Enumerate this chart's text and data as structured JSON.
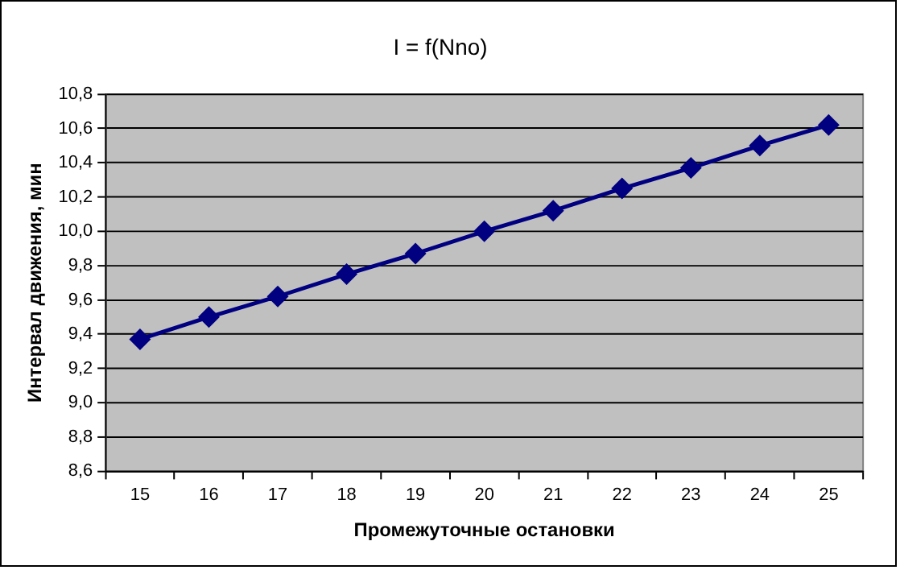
{
  "chart_data": {
    "type": "line",
    "title": "I = f(Nno)",
    "xlabel": "Промежуточные остановки",
    "ylabel": "Интервал движения, мин",
    "categories": [
      "15",
      "16",
      "17",
      "18",
      "19",
      "20",
      "21",
      "22",
      "23",
      "24",
      "25"
    ],
    "series": [
      {
        "color": "#000080",
        "values": [
          9.37,
          9.5,
          9.62,
          9.75,
          9.87,
          10.0,
          10.12,
          10.25,
          10.37,
          10.5,
          10.62
        ]
      }
    ],
    "ylim": [
      8.6,
      10.8
    ],
    "yticks": [
      {
        "value": 8.6,
        "label": "8,6"
      },
      {
        "value": 8.8,
        "label": "8,8"
      },
      {
        "value": 9.0,
        "label": "9,0"
      },
      {
        "value": 9.2,
        "label": "9,2"
      },
      {
        "value": 9.4,
        "label": "9,4"
      },
      {
        "value": 9.6,
        "label": "9,6"
      },
      {
        "value": 9.8,
        "label": "9,8"
      },
      {
        "value": 10.0,
        "label": "10,0"
      },
      {
        "value": 10.2,
        "label": "10,2"
      },
      {
        "value": 10.4,
        "label": "10,4"
      },
      {
        "value": 10.6,
        "label": "10,6"
      },
      {
        "value": 10.8,
        "label": "10,8"
      }
    ],
    "grid": "y",
    "legend": false,
    "marker": "diamond",
    "line_style": "solid"
  }
}
